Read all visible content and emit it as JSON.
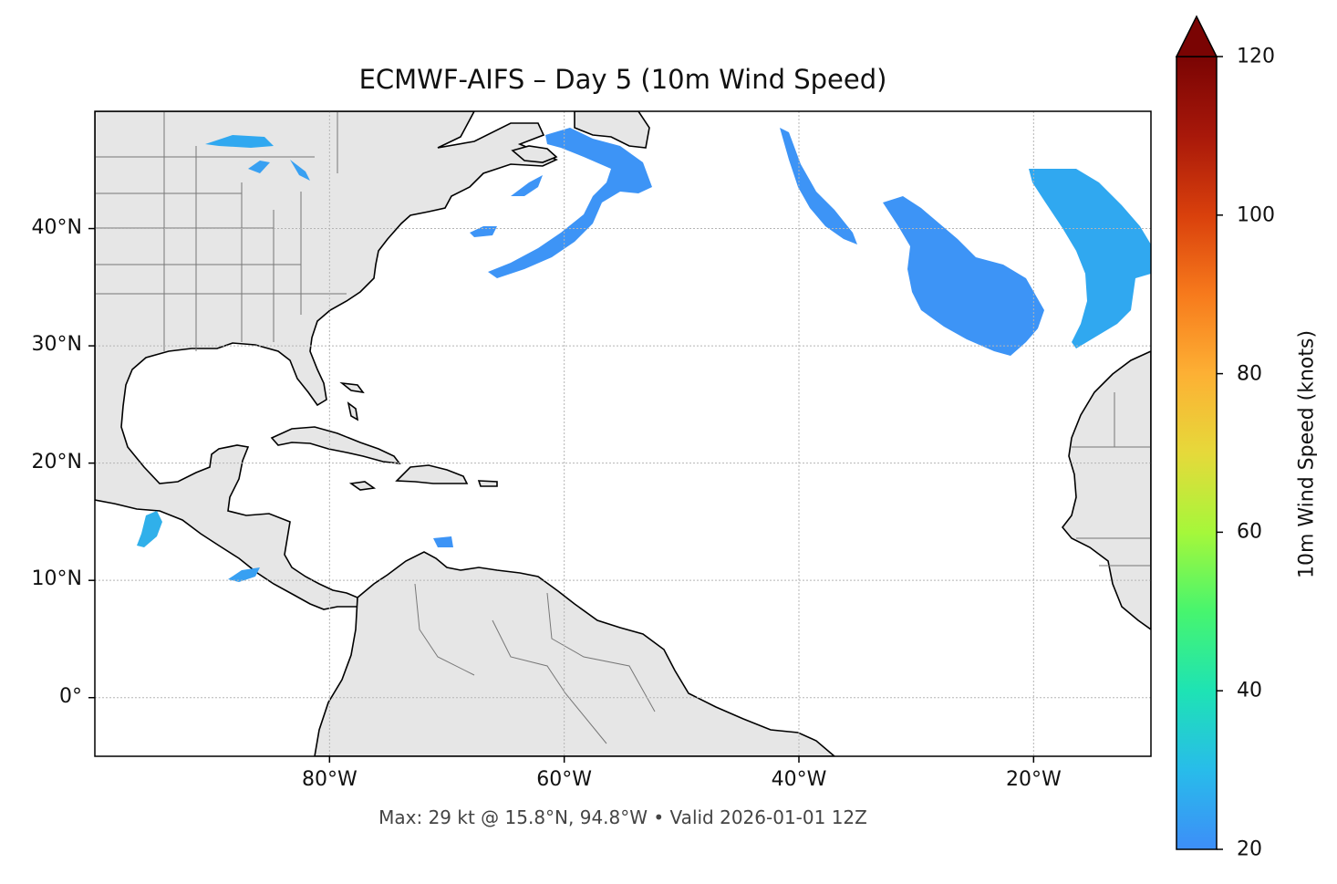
{
  "title": "ECMWF-AIFS – Day 5 (10m Wind Speed)",
  "footer": "Max: 29 kt @ 15.8°N, 94.8°W • Valid 2026-01-01 12Z",
  "map": {
    "extent": {
      "lon_min": -100,
      "lon_max": -10,
      "lat_min": -5,
      "lat_max": 50
    },
    "lat_ticks": [
      {
        "value": 40,
        "label": "40°N"
      },
      {
        "value": 30,
        "label": "30°N"
      },
      {
        "value": 20,
        "label": "20°N"
      },
      {
        "value": 10,
        "label": "10°N"
      },
      {
        "value": 0,
        "label": "0°"
      }
    ],
    "lon_ticks": [
      {
        "value": -80,
        "label": "80°W"
      },
      {
        "value": -60,
        "label": "60°W"
      },
      {
        "value": -40,
        "label": "40°W"
      },
      {
        "value": -20,
        "label": "20°W"
      }
    ],
    "gridlines": true,
    "land_color": "#e6e6e6",
    "max_marker": {
      "lat": 15.8,
      "lon": -94.8,
      "value_kt": 29
    }
  },
  "colorbar": {
    "label": "10m Wind Speed (knots)",
    "min": 20,
    "max": 120,
    "extend": "max",
    "ticks": [
      "20",
      "40",
      "60",
      "80",
      "100",
      "120"
    ],
    "colors": [
      "#3d8ef8",
      "#28bcea",
      "#1ee3b4",
      "#47f56e",
      "#a6f73a",
      "#e6d93a",
      "#fdb034",
      "#f77a1c",
      "#d9400c",
      "#a8180a",
      "#7a0403"
    ],
    "extend_color": "#7a0403"
  }
}
